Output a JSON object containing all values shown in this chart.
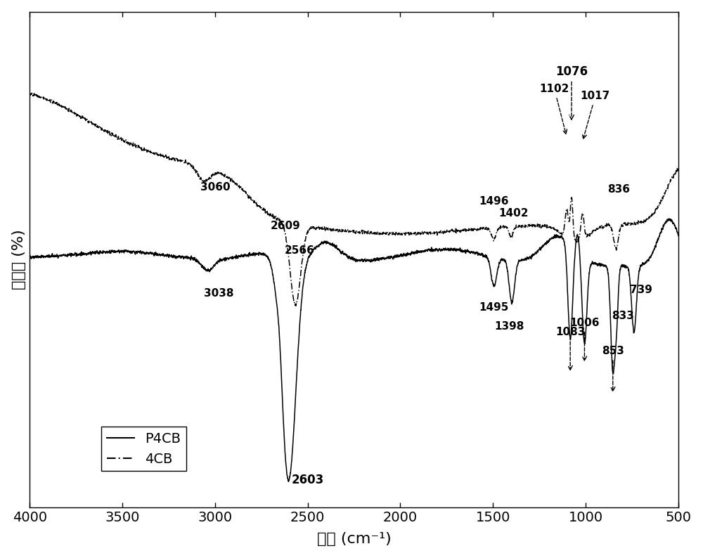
{
  "xlabel": "波数 (cm⁻¹)",
  "ylabel": "透过率 (%)",
  "background_color": "#ffffff",
  "legend_labels": [
    "P4CB",
    "4CB"
  ]
}
